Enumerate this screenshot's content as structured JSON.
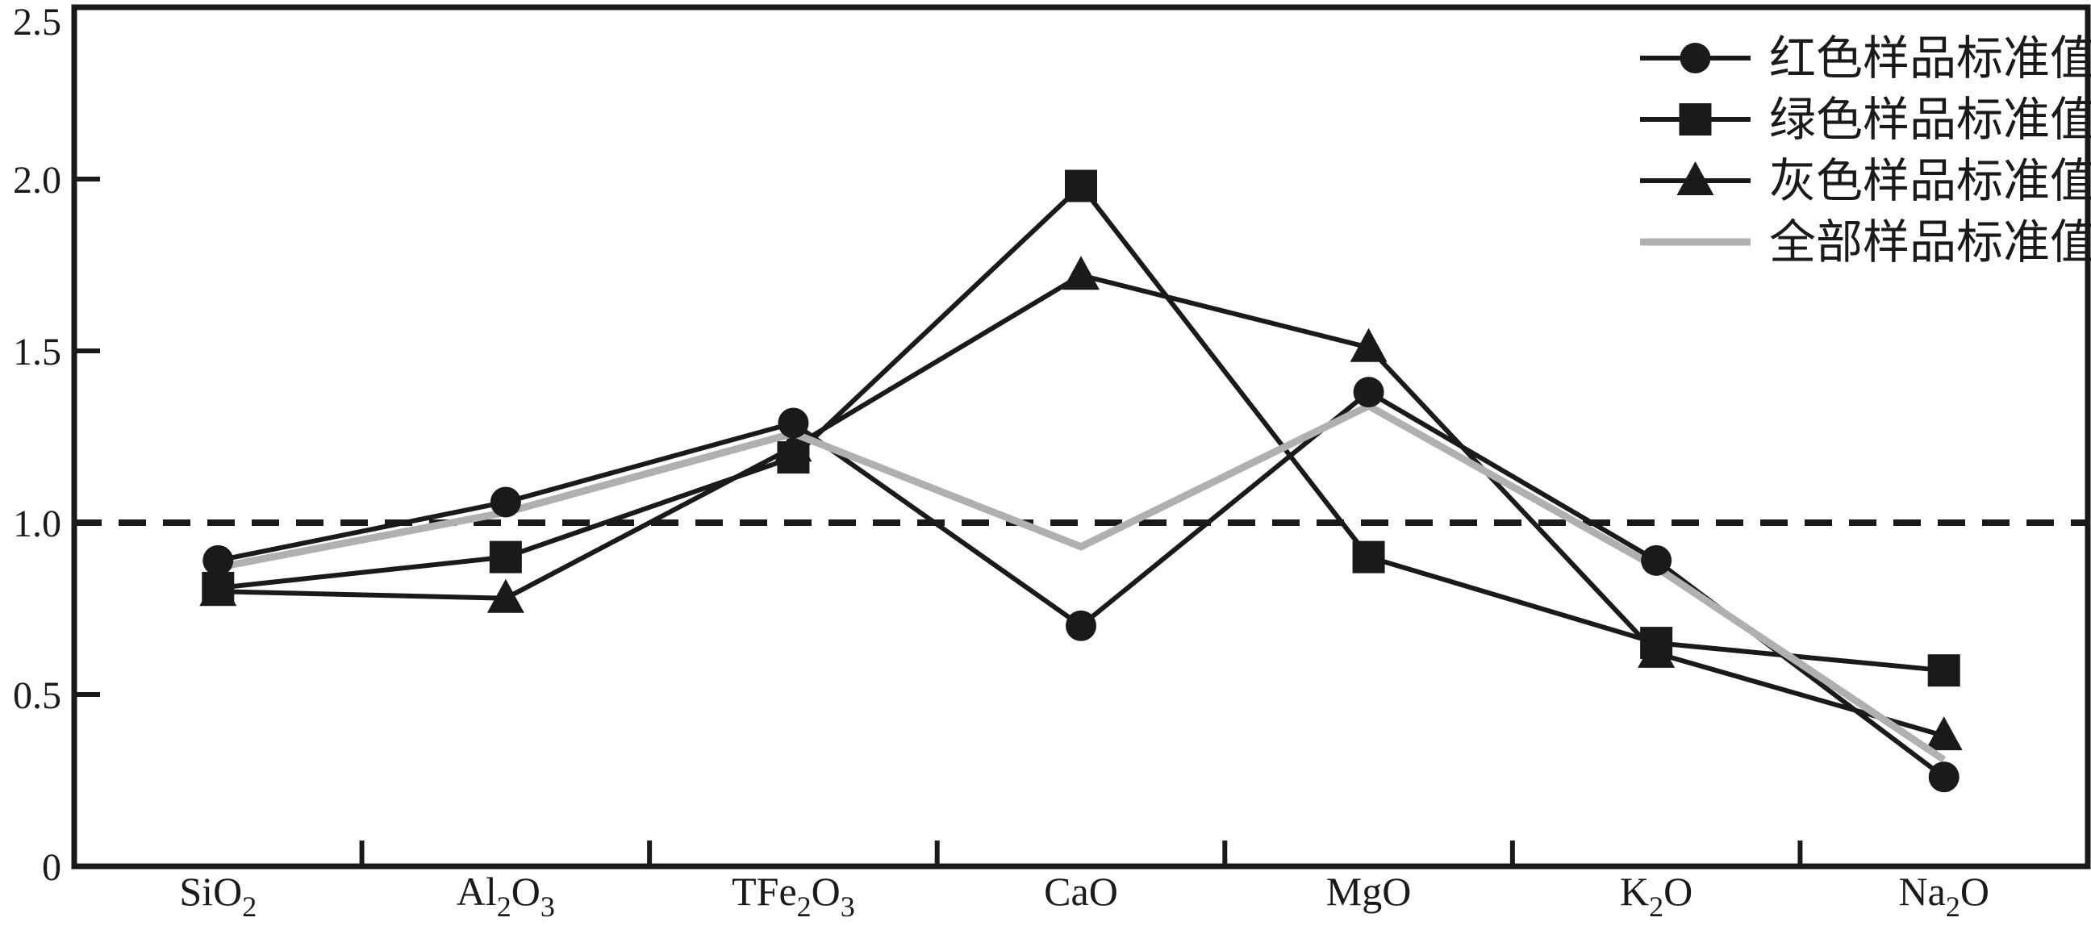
{
  "colors": {
    "black": "#1a1a1a",
    "gray_line": "#b0b0b0",
    "background": "#ffffff"
  },
  "chart_data": {
    "type": "line",
    "title": "",
    "xlabel": "",
    "ylabel": "",
    "grid": false,
    "legend_position": "top-right-inside",
    "categories": [
      "SiO_2",
      "Al_2O_3",
      "TFe_2O_3",
      "CaO",
      "MgO",
      "K_2O",
      "Na_2O"
    ],
    "y_axis": {
      "min": 0,
      "max": 2.5,
      "ticks": [
        0,
        0.5,
        1.0,
        1.5,
        2.0,
        2.5
      ],
      "tick_labels": [
        "0",
        "0.5",
        "1.0",
        "1.5",
        "2.0",
        "2.5"
      ]
    },
    "reference_line": {
      "value": 1.0,
      "style": "dashed",
      "color": "#1a1a1a"
    },
    "series": [
      {
        "name": "红色样品标准值",
        "marker": "circle",
        "color": "#1a1a1a",
        "values": [
          0.89,
          1.06,
          1.29,
          0.7,
          1.38,
          0.89,
          0.26
        ]
      },
      {
        "name": "绿色样品标准值",
        "marker": "square",
        "color": "#1a1a1a",
        "values": [
          0.81,
          0.9,
          1.19,
          1.98,
          0.9,
          0.65,
          0.57
        ]
      },
      {
        "name": "灰色样品标准值",
        "marker": "triangle",
        "color": "#1a1a1a",
        "values": [
          0.8,
          0.78,
          1.22,
          1.72,
          1.51,
          0.62,
          0.38
        ]
      },
      {
        "name": "全部样品标准值",
        "marker": "none",
        "color": "#b0b0b0",
        "values": [
          0.87,
          1.03,
          1.26,
          0.93,
          1.34,
          0.87,
          0.31
        ]
      }
    ]
  }
}
